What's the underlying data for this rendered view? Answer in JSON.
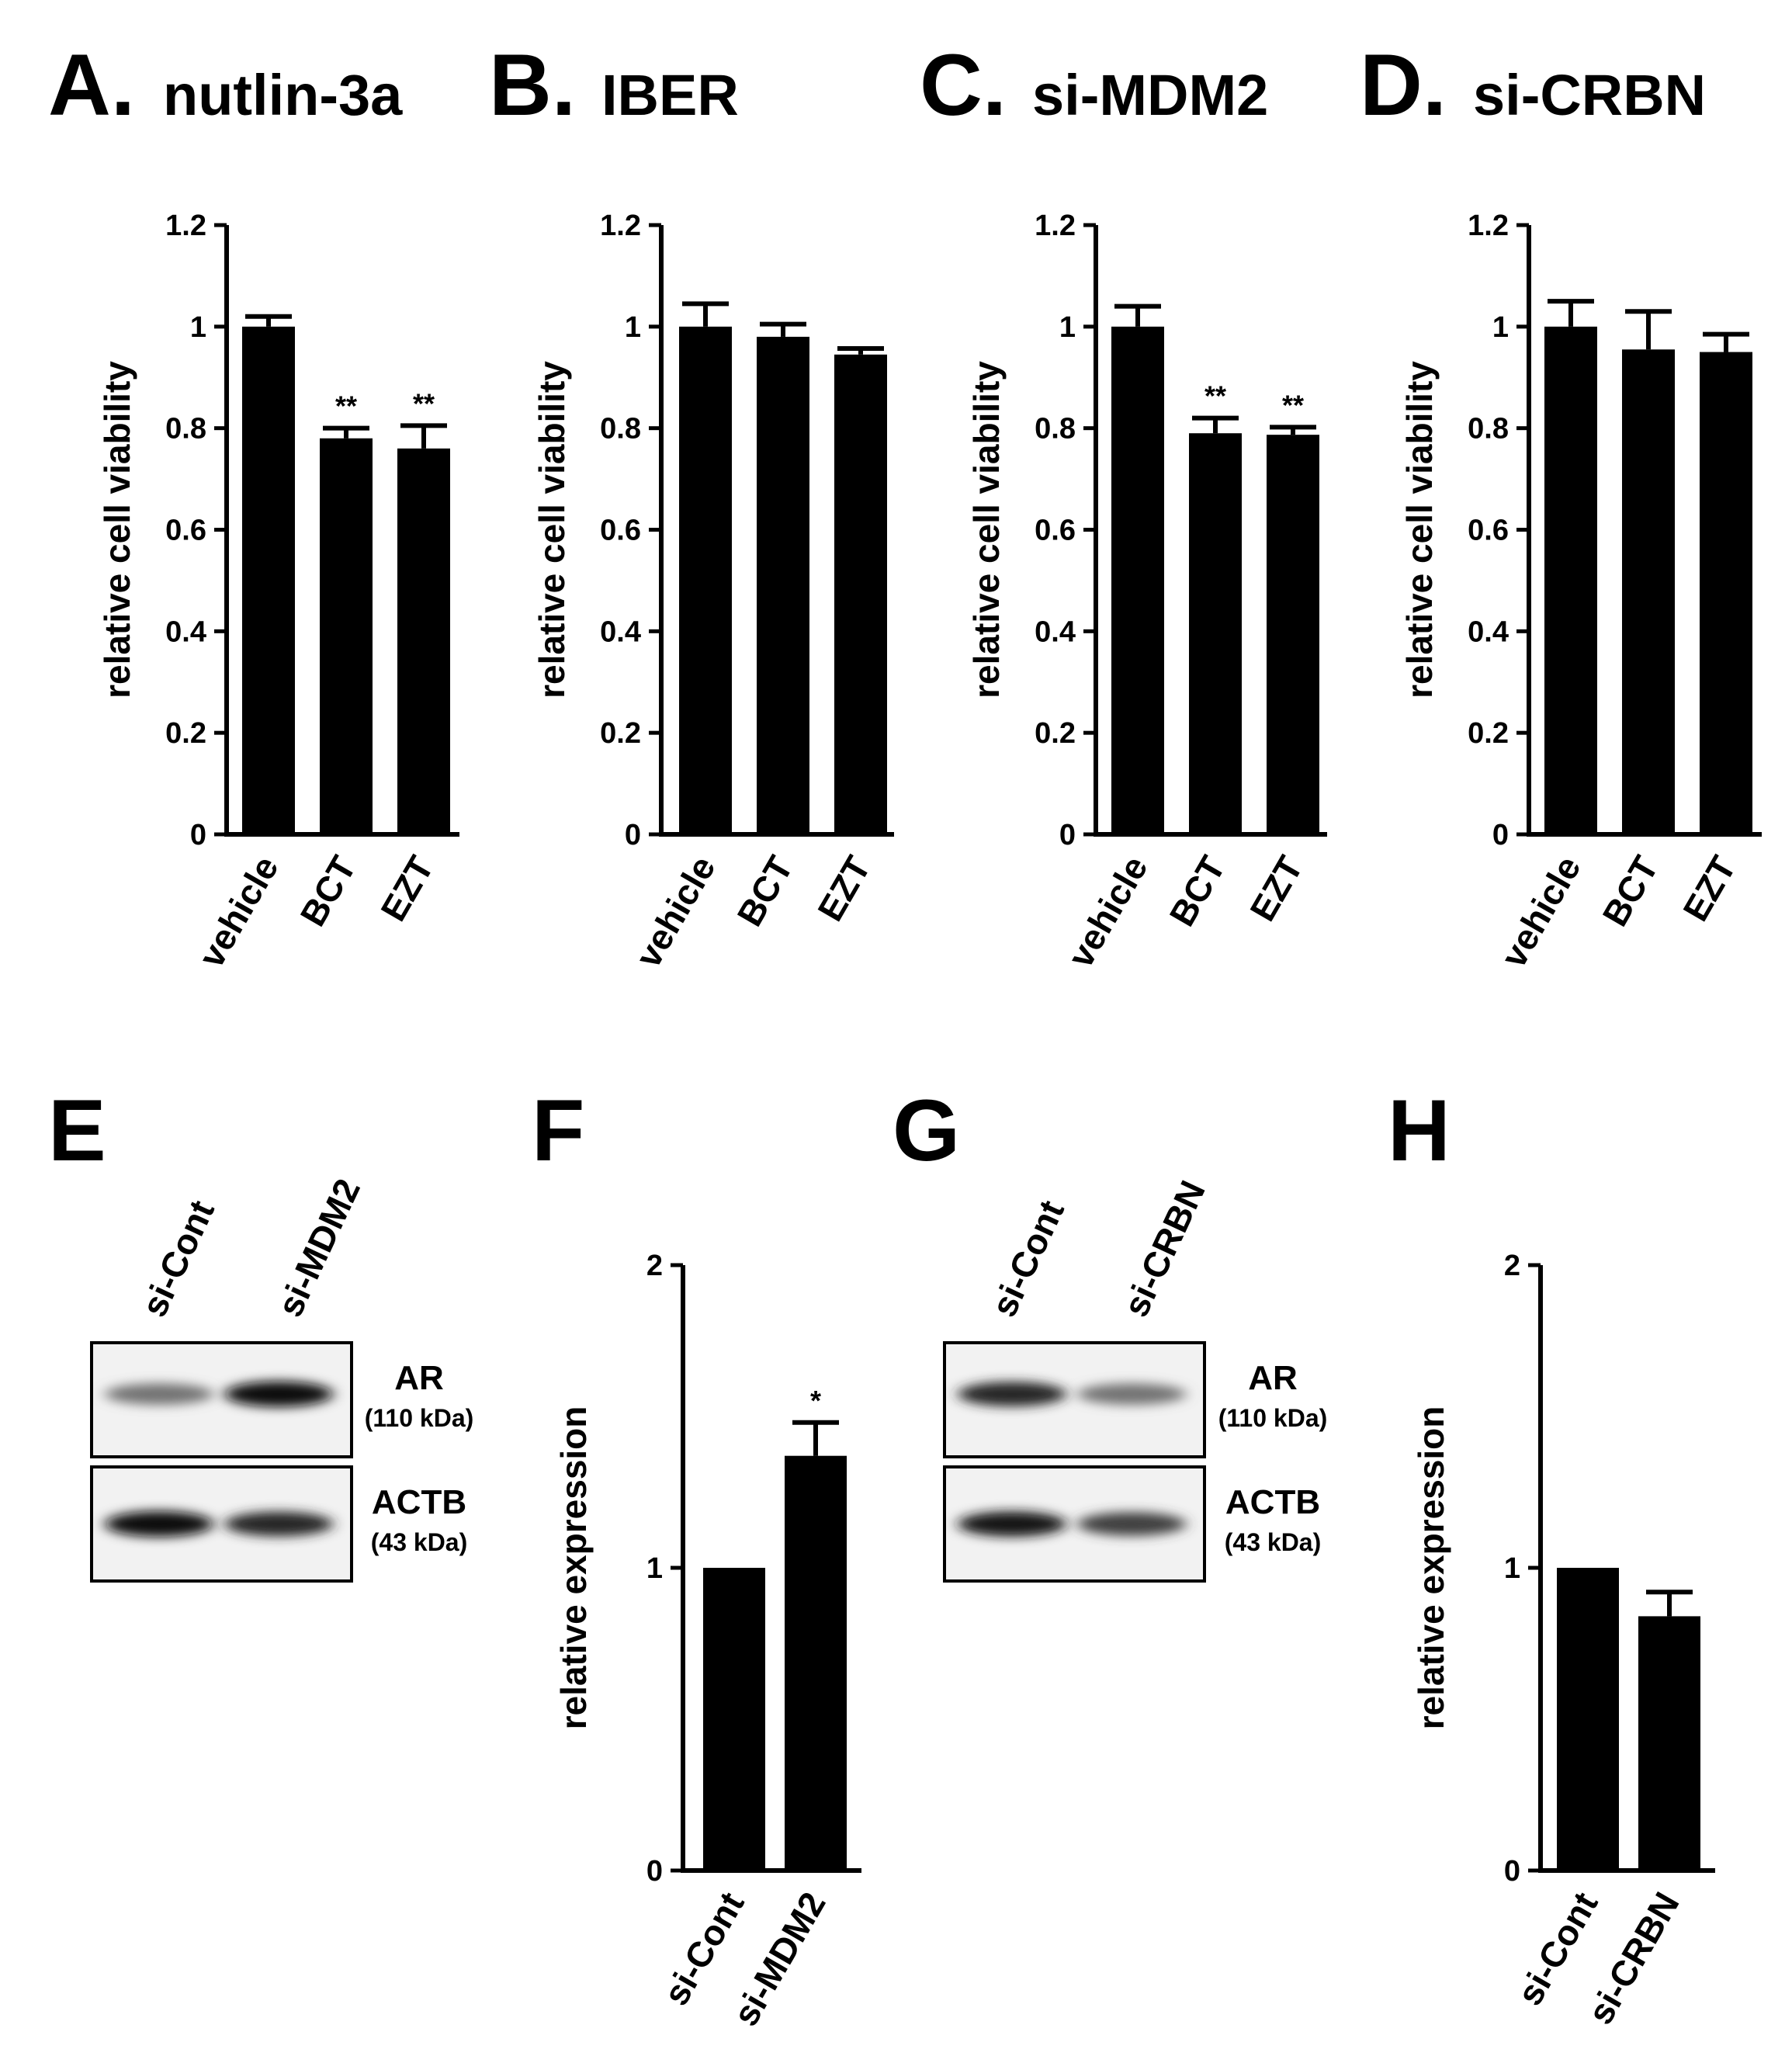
{
  "chart_data": [
    {
      "id": "A",
      "type": "bar",
      "letter": "A.",
      "title": "nutlin-3a",
      "ylabel": "relative cell viability",
      "xlabel": "",
      "ylim": [
        0,
        1.2
      ],
      "yticks": [
        "0",
        "0.2",
        "0.4",
        "0.6",
        "0.8",
        "1",
        "1.2"
      ],
      "categories": [
        "vehicle",
        "BCT",
        "EZT"
      ],
      "values": [
        1.0,
        0.78,
        0.76
      ],
      "errors": [
        0.02,
        0.02,
        0.045
      ],
      "significance": [
        "",
        "**",
        "**"
      ]
    },
    {
      "id": "B",
      "type": "bar",
      "letter": "B.",
      "title": "IBER",
      "ylabel": "relative cell viability",
      "xlabel": "",
      "ylim": [
        0,
        1.2
      ],
      "yticks": [
        "0",
        "0.2",
        "0.4",
        "0.6",
        "0.8",
        "1",
        "1.2"
      ],
      "categories": [
        "vehicle",
        "BCT",
        "EZT"
      ],
      "values": [
        1.0,
        0.98,
        0.945
      ],
      "errors": [
        0.045,
        0.025,
        0.012
      ],
      "significance": [
        "",
        "",
        ""
      ]
    },
    {
      "id": "C",
      "type": "bar",
      "letter": "C.",
      "title": "si-MDM2",
      "ylabel": "relative cell viability",
      "xlabel": "",
      "ylim": [
        0,
        1.2
      ],
      "yticks": [
        "0",
        "0.2",
        "0.4",
        "0.6",
        "0.8",
        "1",
        "1.2"
      ],
      "categories": [
        "vehicle",
        "BCT",
        "EZT"
      ],
      "values": [
        1.0,
        0.79,
        0.787
      ],
      "errors": [
        0.04,
        0.03,
        0.015
      ],
      "significance": [
        "",
        "**",
        "**"
      ]
    },
    {
      "id": "D",
      "type": "bar",
      "letter": "D.",
      "title": "si-CRBN",
      "ylabel": "relative cell viability",
      "xlabel": "",
      "ylim": [
        0,
        1.2
      ],
      "yticks": [
        "0",
        "0.2",
        "0.4",
        "0.6",
        "0.8",
        "1",
        "1.2"
      ],
      "categories": [
        "vehicle",
        "BCT",
        "EZT"
      ],
      "values": [
        1.0,
        0.955,
        0.95
      ],
      "errors": [
        0.05,
        0.075,
        0.035
      ],
      "significance": [
        "",
        "",
        ""
      ]
    },
    {
      "id": "F",
      "type": "bar",
      "letter": "F",
      "title": "",
      "ylabel": "relative expression",
      "xlabel": "",
      "ylim": [
        0,
        2
      ],
      "yticks": [
        "0",
        "1",
        "2"
      ],
      "categories": [
        "si-Cont",
        "si-MDM2"
      ],
      "values": [
        1.0,
        1.37
      ],
      "errors": [
        0,
        0.11
      ],
      "significance": [
        "",
        "*"
      ]
    },
    {
      "id": "H",
      "type": "bar",
      "letter": "H",
      "title": "",
      "ylabel": "relative expression",
      "xlabel": "",
      "ylim": [
        0,
        2
      ],
      "yticks": [
        "0",
        "1",
        "2"
      ],
      "categories": [
        "si-Cont",
        "si-CRBN"
      ],
      "values": [
        1.0,
        0.84
      ],
      "errors": [
        0,
        0.08
      ],
      "significance": [
        "",
        ""
      ]
    }
  ],
  "blots": [
    {
      "id": "E",
      "letter": "E",
      "lanes": [
        "si-Cont",
        "si-MDM2"
      ],
      "rows": [
        {
          "protein": "AR",
          "size": "(110 kDa)",
          "intensity": [
            0.55,
            0.95
          ]
        },
        {
          "protein": "ACTB",
          "size": "(43 kDa)",
          "intensity": [
            0.95,
            0.85
          ]
        }
      ]
    },
    {
      "id": "G",
      "letter": "G",
      "lanes": [
        "si-Cont",
        "si-CRBN"
      ],
      "rows": [
        {
          "protein": "AR",
          "size": "(110 kDa)",
          "intensity": [
            0.85,
            0.55
          ]
        },
        {
          "protein": "ACTB",
          "size": "(43 kDa)",
          "intensity": [
            0.9,
            0.75
          ]
        }
      ]
    }
  ],
  "colors": {
    "bar": "#000000",
    "axis": "#000000",
    "background": "#ffffff"
  }
}
